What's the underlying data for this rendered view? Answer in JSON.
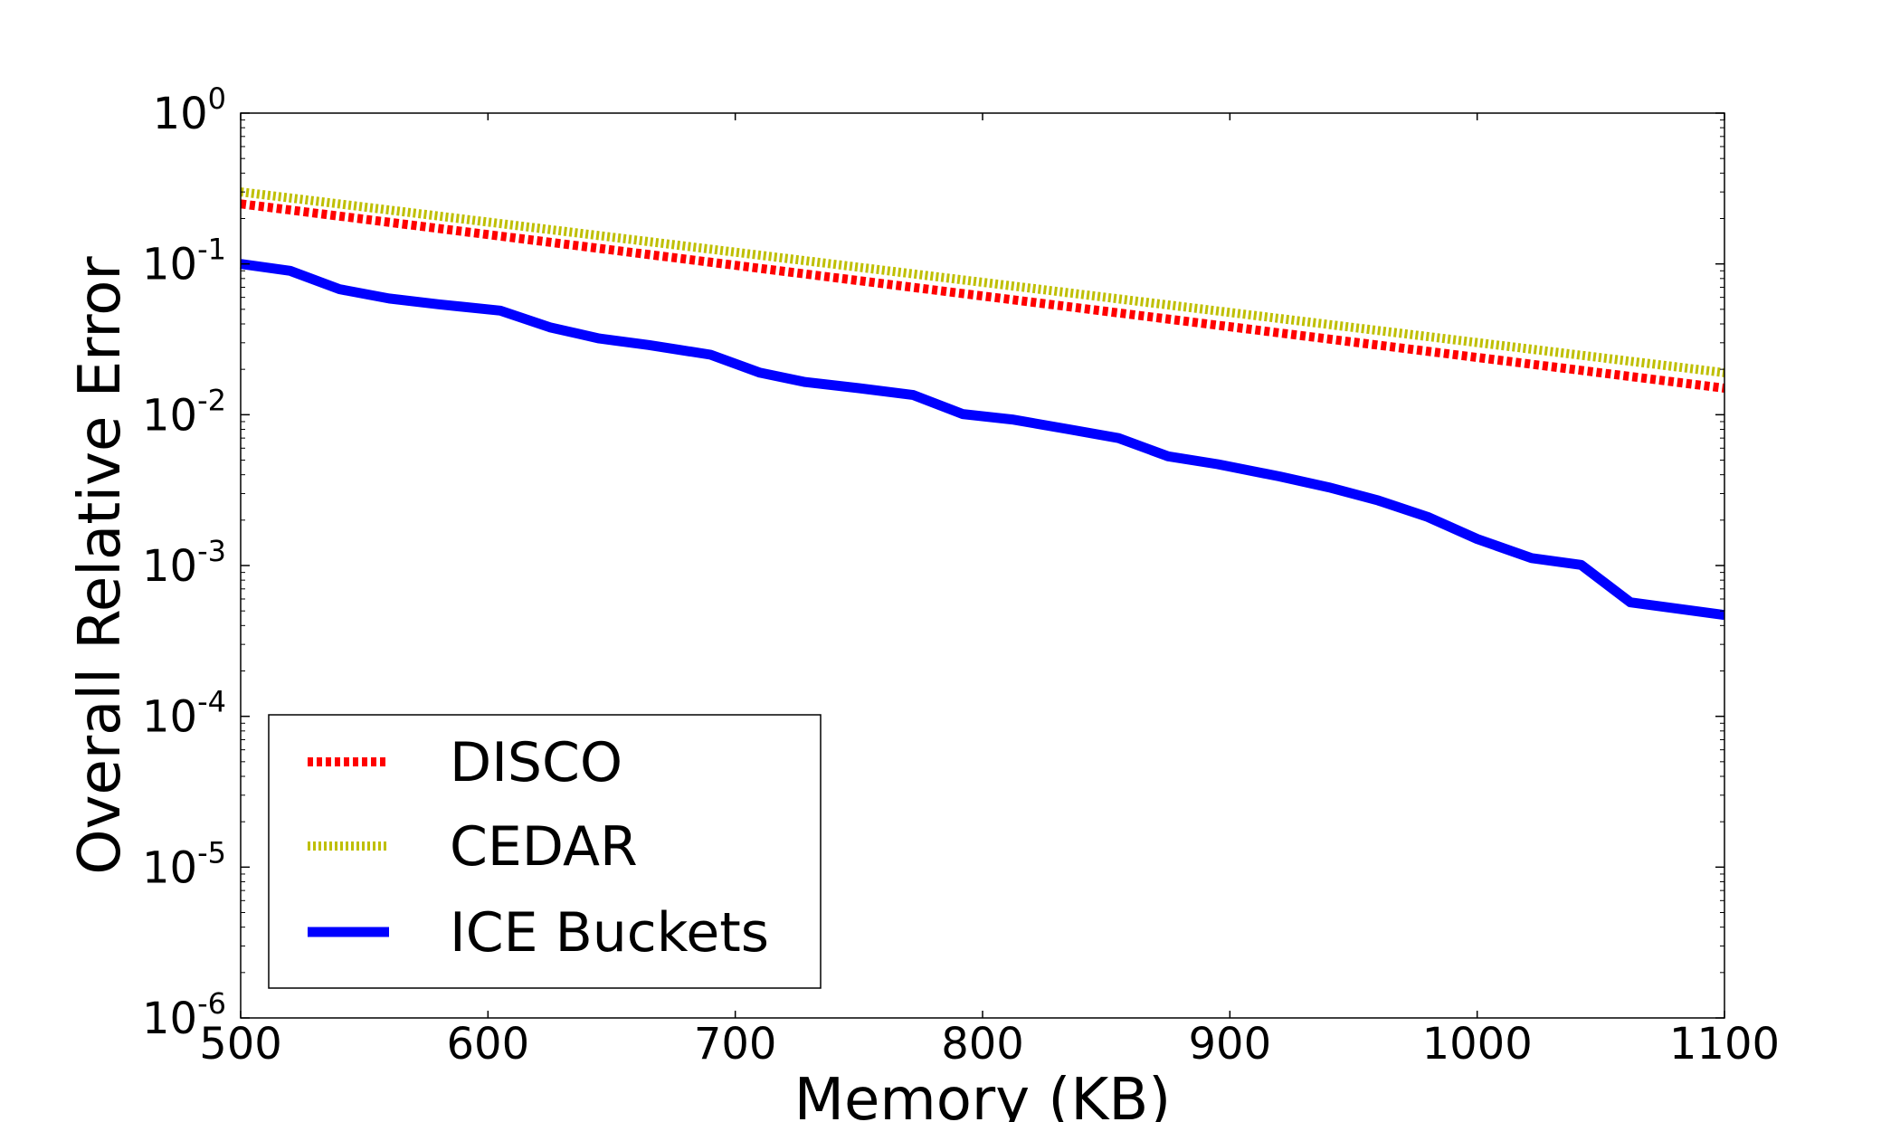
{
  "chart_data": {
    "type": "line",
    "xlabel": "Memory (KB)",
    "ylabel": "Overall Relative Error",
    "xlim": [
      500,
      1100
    ],
    "ylim": [
      1e-06,
      1
    ],
    "yscale": "log",
    "xticks": [
      500,
      600,
      700,
      800,
      900,
      1000,
      1100
    ],
    "yticks": [
      {
        "value": 1,
        "base": "10",
        "exp": "0"
      },
      {
        "value": 0.1,
        "base": "10",
        "exp": "-1"
      },
      {
        "value": 0.01,
        "base": "10",
        "exp": "-2"
      },
      {
        "value": 0.001,
        "base": "10",
        "exp": "-3"
      },
      {
        "value": 0.0001,
        "base": "10",
        "exp": "-4"
      },
      {
        "value": 1e-05,
        "base": "10",
        "exp": "-5"
      },
      {
        "value": 1e-06,
        "base": "10",
        "exp": "-6"
      }
    ],
    "grid": false,
    "legend_position": "lower-left",
    "series": [
      {
        "name": "DISCO",
        "color": "#ff0000",
        "style": "dotted",
        "x": [
          500,
          1100
        ],
        "y": [
          0.25,
          0.015
        ]
      },
      {
        "name": "CEDAR",
        "color": "#bfbf00",
        "style": "dashdot",
        "x": [
          500,
          1100
        ],
        "y": [
          0.3,
          0.019
        ]
      },
      {
        "name": "ICE Buckets",
        "color": "#0000ff",
        "style": "solid",
        "x": [
          500,
          520,
          540,
          560,
          580,
          605,
          625,
          645,
          665,
          690,
          710,
          728,
          750,
          772,
          792,
          812,
          835,
          855,
          875,
          895,
          920,
          940,
          960,
          980,
          1000,
          1022,
          1042,
          1062,
          1080,
          1100
        ],
        "y": [
          0.1,
          0.09,
          0.068,
          0.059,
          0.054,
          0.049,
          0.038,
          0.032,
          0.029,
          0.025,
          0.019,
          0.0165,
          0.015,
          0.0135,
          0.0101,
          0.0093,
          0.008,
          0.007,
          0.0053,
          0.0047,
          0.0039,
          0.0033,
          0.0027,
          0.0021,
          0.0015,
          0.00112,
          0.00101,
          0.00057,
          0.00052,
          0.00047
        ]
      }
    ]
  }
}
